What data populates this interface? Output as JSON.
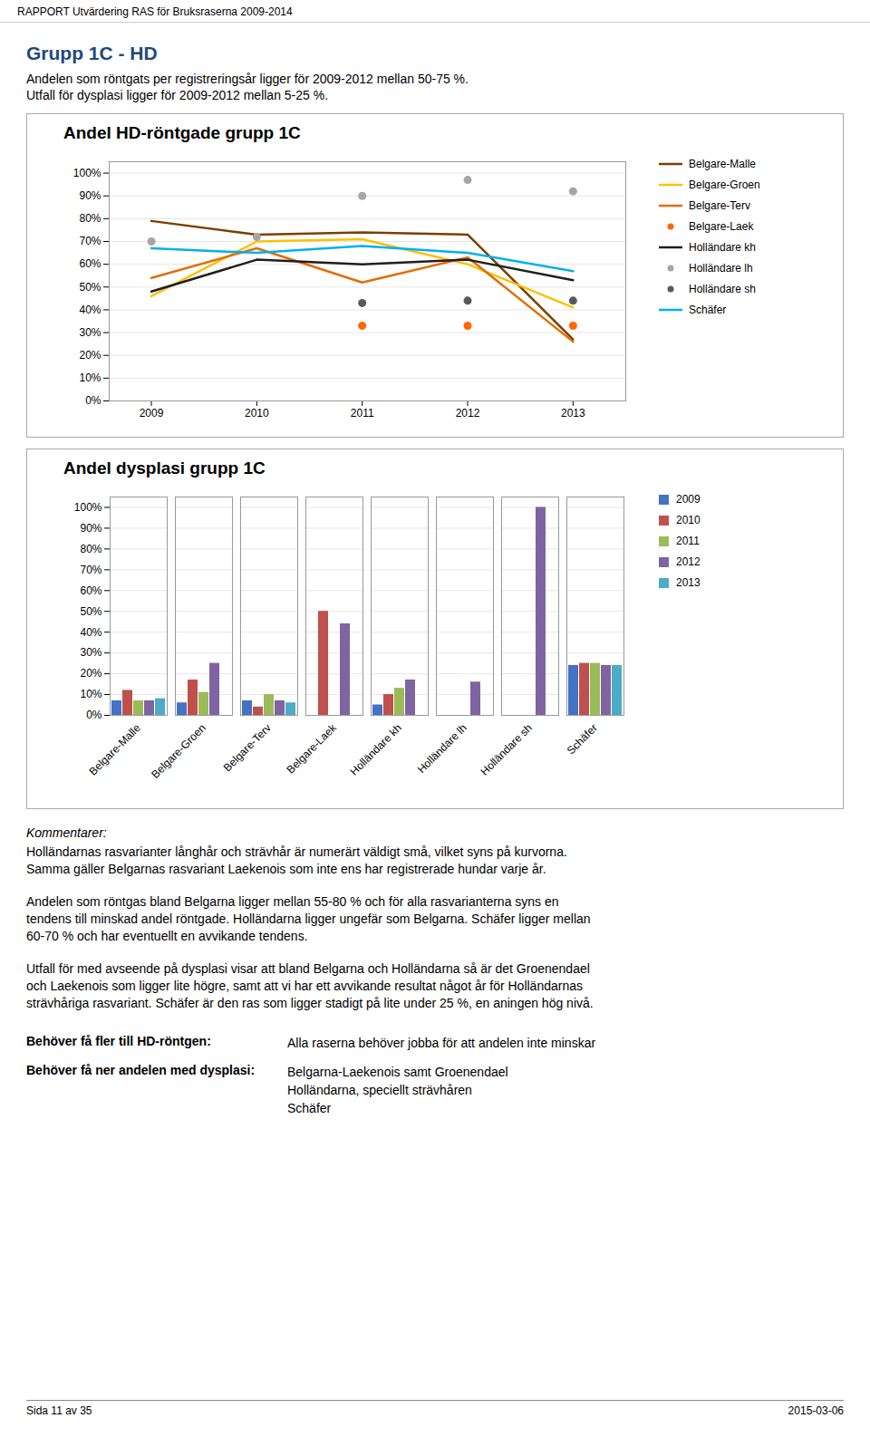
{
  "page_header": "RAPPORT Utvärdering RAS för Bruksraserna 2009-2014",
  "title": "Grupp 1C - HD",
  "subtitle": [
    "Andelen som röntgats per registreringsår ligger för 2009-2012 mellan 50-75 %.",
    "Utfall för dysplasi ligger för 2009-2012 mellan 5-25 %."
  ],
  "chart_data": [
    {
      "type": "line",
      "title": "Andel HD-röntgade grupp 1C",
      "x": [
        2009,
        2010,
        2011,
        2012,
        2013
      ],
      "xlim": [
        2008.6,
        2013.5
      ],
      "xticks": [
        2009,
        2010,
        2011,
        2012,
        2013
      ],
      "ylim": [
        0,
        105
      ],
      "yticks": [
        {
          "value": 0,
          "label": "0%"
        },
        {
          "value": 10,
          "label": "10%"
        },
        {
          "value": 20,
          "label": "20%"
        },
        {
          "value": 30,
          "label": "30%"
        },
        {
          "value": 40,
          "label": "40%"
        },
        {
          "value": 50,
          "label": "50%"
        },
        {
          "value": 60,
          "label": "60%"
        },
        {
          "value": 70,
          "label": "70%"
        },
        {
          "value": 80,
          "label": "80%"
        },
        {
          "value": 90,
          "label": "90%"
        },
        {
          "value": 100,
          "label": "100%"
        }
      ],
      "grid": "y",
      "legend": "right",
      "series": [
        {
          "name": "Belgare-Malle",
          "color": "#7B3F00",
          "line_style": "solid",
          "values": [
            79,
            73,
            74,
            73,
            27
          ]
        },
        {
          "name": "Belgare-Groen",
          "color": "#FFC000",
          "line_style": "solid",
          "values": [
            46,
            70,
            71,
            60,
            41
          ]
        },
        {
          "name": "Belgare-Terv",
          "color": "#E36C09",
          "line_style": "solid",
          "values": [
            54,
            67,
            52,
            63,
            26
          ]
        },
        {
          "name": "Belgare-Laek",
          "color": "#FF6600",
          "line_style": "none",
          "marker": "o",
          "values": [
            null,
            null,
            33,
            33,
            33
          ]
        },
        {
          "name": "Holländare kh",
          "color": "#1F1F1F",
          "line_style": "solid",
          "values": [
            48,
            62,
            60,
            62,
            53
          ]
        },
        {
          "name": "Holländare lh",
          "color": "#A6A6A6",
          "line_style": "none",
          "marker": "o",
          "values": [
            70,
            72,
            90,
            97,
            92
          ]
        },
        {
          "name": "Holländare sh",
          "color": "#595959",
          "line_style": "none",
          "marker": "o",
          "values": [
            null,
            null,
            43,
            44,
            44
          ]
        },
        {
          "name": "Schäfer",
          "color": "#00B0F0",
          "line_style": "solid",
          "values": [
            67,
            65,
            68,
            65,
            57
          ]
        }
      ]
    },
    {
      "type": "bar",
      "title": "Andel dysplasi grupp 1C",
      "categories": [
        "Belgare-Malle",
        "Belgare-Groen",
        "Belgare-Terv",
        "Belgare-Laek",
        "Holländare kh",
        "Holländare lh",
        "Holländare sh",
        "Schäfer"
      ],
      "ylim": [
        0,
        105
      ],
      "yticks": [
        {
          "value": 0,
          "label": "0%"
        },
        {
          "value": 10,
          "label": "10%"
        },
        {
          "value": 20,
          "label": "20%"
        },
        {
          "value": 30,
          "label": "30%"
        },
        {
          "value": 40,
          "label": "40%"
        },
        {
          "value": 50,
          "label": "50%"
        },
        {
          "value": 60,
          "label": "60%"
        },
        {
          "value": 70,
          "label": "70%"
        },
        {
          "value": 80,
          "label": "80%"
        },
        {
          "value": 90,
          "label": "90%"
        },
        {
          "value": 100,
          "label": "100%"
        }
      ],
      "grid": "y",
      "legend": "right",
      "series": [
        {
          "name": "2009",
          "color": "#4472C4",
          "values": [
            7,
            6,
            7,
            null,
            5,
            null,
            null,
            24
          ]
        },
        {
          "name": "2010",
          "color": "#C0504D",
          "values": [
            12,
            17,
            4,
            50,
            10,
            null,
            null,
            25
          ]
        },
        {
          "name": "2011",
          "color": "#9BBB59",
          "values": [
            7,
            11,
            10,
            null,
            13,
            null,
            null,
            25
          ]
        },
        {
          "name": "2012",
          "color": "#8064A2",
          "values": [
            7,
            25,
            7,
            44,
            17,
            16,
            100,
            24
          ]
        },
        {
          "name": "2013",
          "color": "#4BACC6",
          "values": [
            8,
            null,
            6,
            null,
            null,
            null,
            null,
            24
          ]
        }
      ]
    }
  ],
  "comments_header": "Kommentarer:",
  "comments": [
    [
      "Holländarnas rasvarianter långhår och strävhår är numerärt väldigt små, vilket syns på kurvorna.",
      "Samma gäller Belgarnas rasvariant Laekenois som inte ens har registrerade hundar varje år."
    ],
    [
      "Andelen som röntgas bland Belgarna ligger mellan 55-80 % och för alla rasvarianterna syns en",
      "tendens till minskad andel röntgade. Holländarna ligger ungefär som Belgarna. Schäfer ligger mellan",
      "60-70 % och har eventuellt en avvikande tendens."
    ],
    [
      "Utfall för med avseende på dysplasi visar att bland Belgarna och Holländarna så är det Groenendael",
      "och Laekenois som ligger lite högre, samt att vi har ett avvikande resultat något år för Holländarnas",
      "strävhåriga rasvariant. Schäfer är den ras som ligger stadigt på lite under 25 %, en aningen hög nivå."
    ]
  ],
  "notes": [
    {
      "label": "Behöver få fler till HD-röntgen:",
      "text": [
        "Alla raserna behöver jobba för att andelen inte minskar"
      ]
    },
    {
      "label": "Behöver få ner andelen med dysplasi:",
      "text": [
        "Belgarna-Laekenois samt Groenendael",
        "Holländarna, speciellt strävhåren",
        "Schäfer"
      ]
    }
  ],
  "footer": [
    "Sida 11 av 35",
    "2015-03-06"
  ]
}
